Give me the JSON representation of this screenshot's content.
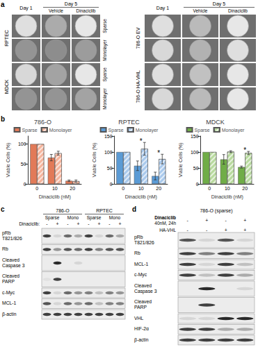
{
  "panels": {
    "a": {
      "label": "a",
      "left": {
        "header": {
          "day1": "Day 1",
          "day5": "Day 5",
          "vehicle": "Vehicle",
          "drug": "Dinaciclib"
        },
        "groups": [
          {
            "name": "RPTEC",
            "rows": [
              "Sparse",
              "Monolayer"
            ]
          },
          {
            "name": "MDCK",
            "rows": [
              "Sparse",
              "Monolayer"
            ]
          }
        ]
      },
      "right": {
        "header": {
          "day1": "Day 1",
          "day5": "Day 5",
          "vehicle": "Vehicle",
          "drug": "Dinaciclib"
        },
        "groups": [
          {
            "name": "786-O EV"
          },
          {
            "name": "786-O HA-VHL"
          }
        ]
      }
    },
    "b": {
      "label": "b"
    },
    "c": {
      "label": "c",
      "groups": [
        {
          "name": "786-O",
          "conditions": [
            "Sparse",
            "Mono"
          ]
        },
        {
          "name": "RPTEC",
          "conditions": [
            "Sparse",
            "Mono"
          ]
        }
      ],
      "treatment": {
        "label": "Dinaciclib:",
        "signs": [
          "-",
          "+",
          "-",
          "+",
          "-",
          "+",
          "-",
          "+"
        ]
      },
      "rows": [
        [
          "pRb",
          "T821/826"
        ],
        [
          "Rb"
        ],
        [
          "Cleaved",
          "Caspase 3"
        ],
        [
          "Cleaved",
          "PARP"
        ],
        [
          "c-Myc"
        ],
        [
          "MCL-1"
        ],
        [
          "β-actin"
        ]
      ]
    },
    "d": {
      "label": "d",
      "title": "786-O (sparse)",
      "treatments": [
        {
          "lines": [
            "Dinaciclib",
            "40nM, 24h"
          ],
          "signs": [
            "-",
            "+",
            "-",
            "+"
          ]
        },
        {
          "lines": [
            "HA-VHL"
          ],
          "signs": [
            "-",
            "-",
            "+",
            "+"
          ]
        }
      ],
      "rows": [
        [
          "pRb",
          "T821/826"
        ],
        [
          "Rb"
        ],
        [
          "MCL-1"
        ],
        [
          "c-Myc"
        ],
        [
          "Cleaved",
          "Caspase 3"
        ],
        [
          "Cleaved",
          "PARP"
        ],
        [
          "VHL"
        ],
        [
          "HIF-2α"
        ],
        [
          "β-actin"
        ]
      ]
    }
  },
  "chart_data": [
    {
      "type": "bar",
      "title": "786-O",
      "x_label": "Dinaciclib (nM)",
      "y_label": "Viable Cells (%)",
      "categories": [
        "0",
        "10",
        "20"
      ],
      "series": [
        {
          "name": "Sparse",
          "color": "#e27a58",
          "values": [
            100,
            66,
            8
          ],
          "errors": [
            0,
            8,
            2
          ]
        },
        {
          "name": "Monolayer",
          "color": "#f5b49c",
          "values": [
            100,
            77,
            7
          ],
          "errors": [
            0,
            5,
            3
          ]
        }
      ],
      "ylim": [
        0,
        120
      ],
      "yticks": [
        0,
        50,
        100
      ],
      "grid": false,
      "legend": "top",
      "annotations": []
    },
    {
      "type": "bar",
      "title": "RPTEC",
      "x_label": "Dinaciclib (nM)",
      "y_label": "Viable Cells (%)",
      "categories": [
        "0",
        "10",
        "20"
      ],
      "series": [
        {
          "name": "Sparse",
          "color": "#5b9bd5",
          "values": [
            100,
            57,
            25
          ],
          "errors": [
            0,
            15,
            12
          ]
        },
        {
          "name": "Monolayer",
          "color": "#a9c9ec",
          "values": [
            100,
            110,
            78
          ],
          "errors": [
            0,
            20,
            15
          ]
        }
      ],
      "ylim": [
        0,
        150
      ],
      "yticks": [
        0,
        50,
        100,
        150
      ],
      "grid": false,
      "legend": "top",
      "annotations": [
        {
          "category": "10",
          "text": "*"
        },
        {
          "category": "20",
          "text": "*"
        }
      ]
    },
    {
      "type": "bar",
      "title": "MDCK",
      "x_label": "Dinaciclib (nM)",
      "y_label": "Viable Cells (%)",
      "categories": [
        "0",
        "10",
        "20"
      ],
      "series": [
        {
          "name": "Sparse",
          "color": "#70ad47",
          "values": [
            100,
            77,
            53
          ],
          "errors": [
            0,
            15,
            3
          ]
        },
        {
          "name": "Monolayer",
          "color": "#b8da9e",
          "values": [
            100,
            101,
            97
          ],
          "errors": [
            0,
            3,
            5
          ]
        }
      ],
      "ylim": [
        0,
        150
      ],
      "yticks": [
        0,
        50,
        100,
        150
      ],
      "grid": false,
      "legend": "top",
      "annotations": [
        {
          "category": "20",
          "text": "*"
        }
      ]
    }
  ]
}
